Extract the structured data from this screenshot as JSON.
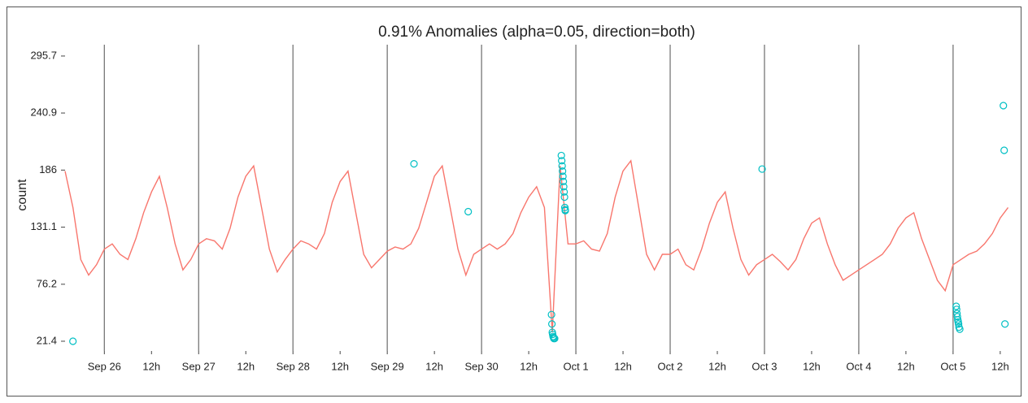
{
  "chart_data": {
    "type": "line",
    "title": "0.91% Anomalies (alpha=0.05, direction=both)",
    "y_label": "count",
    "xlim": [
      14,
      254.1
    ],
    "xticks": [
      {
        "value": 24,
        "label": "Sep 26"
      },
      {
        "value": 48,
        "label": "Sep 27"
      },
      {
        "value": 72,
        "label": "Sep 28"
      },
      {
        "value": 96,
        "label": "Sep 29"
      },
      {
        "value": 120,
        "label": "Sep 30"
      },
      {
        "value": 144,
        "label": "Oct  1"
      },
      {
        "value": 168,
        "label": "Oct  2"
      },
      {
        "value": 192,
        "label": "Oct  3"
      },
      {
        "value": 216,
        "label": "Oct  4"
      },
      {
        "value": 240,
        "label": "Oct  5"
      }
    ],
    "xticks_minor": [
      {
        "value": 36,
        "label": "12h"
      },
      {
        "value": 60,
        "label": "12h"
      },
      {
        "value": 84,
        "label": "12h"
      },
      {
        "value": 108,
        "label": "12h"
      },
      {
        "value": 132,
        "label": "12h"
      },
      {
        "value": 156,
        "label": "12h"
      },
      {
        "value": 180,
        "label": "12h"
      },
      {
        "value": 204,
        "label": "12h"
      },
      {
        "value": 228,
        "label": "12h"
      },
      {
        "value": 252,
        "label": "12h"
      }
    ],
    "ylim": [
      12,
      306.6
    ],
    "yticks": [
      21.4,
      76.2,
      131.1,
      186,
      240.9,
      295.7
    ],
    "grid": true,
    "series": [
      {
        "color": "#f8766d",
        "x_start": 14,
        "x_step": 2,
        "values": [
          185,
          150,
          100,
          85,
          95,
          110,
          115,
          105,
          100,
          120,
          145,
          165,
          180,
          150,
          115,
          90,
          100,
          115,
          120,
          118,
          110,
          130,
          160,
          180,
          190,
          150,
          110,
          88,
          100,
          110,
          118,
          115,
          110,
          125,
          155,
          175,
          185,
          145,
          105,
          92,
          100,
          108,
          112,
          110,
          115,
          130,
          155,
          180,
          190,
          150,
          110,
          85,
          105,
          110,
          115,
          110,
          115,
          125,
          145,
          160,
          170,
          150,
          30,
          190,
          115,
          115,
          118,
          110,
          108,
          125,
          160,
          185,
          195,
          150,
          105,
          90,
          105,
          105,
          110,
          95,
          90,
          110,
          135,
          155,
          165,
          130,
          100,
          85,
          95,
          100,
          105,
          98,
          90,
          100,
          120,
          135,
          140,
          115,
          95,
          80,
          85,
          90,
          95,
          100,
          105,
          115,
          130,
          140,
          145,
          120,
          100,
          80,
          70,
          95,
          100,
          105,
          108,
          115,
          125,
          140,
          150
        ]
      },
      {
        "type": "scatter",
        "color": "#00bfc4",
        "x": [
          16,
          102.8,
          116.6,
          191.4,
          137.8,
          137.9,
          138,
          138.1,
          138.2,
          138.3,
          138.4,
          138.6,
          140.3,
          140.4,
          140.5,
          140.6,
          140.7,
          140.8,
          140.9,
          141,
          141.1,
          141.2,
          141.3,
          141.3,
          240.8,
          240.9,
          241,
          241.1,
          241.2,
          241.3,
          241.4,
          241.5,
          241.7,
          252.8,
          253,
          253.2
        ],
        "values": [
          21.4,
          192,
          146,
          187,
          47,
          38,
          30,
          28,
          26,
          25,
          24,
          24,
          200,
          195,
          190,
          185,
          180,
          175,
          170,
          165,
          160,
          150,
          148,
          147,
          55,
          52,
          48,
          45,
          42,
          40,
          38,
          35,
          33,
          248,
          205,
          38
        ]
      }
    ]
  }
}
